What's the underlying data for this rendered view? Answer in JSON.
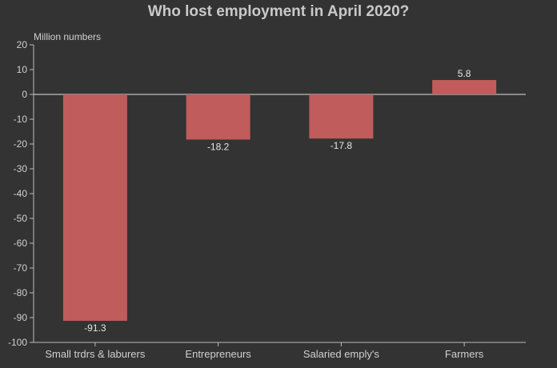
{
  "chart_data": {
    "type": "bar",
    "title": "Who lost employment in April 2020?",
    "ylabel": "Million numbers",
    "xlabel": "",
    "categories": [
      "Small trdrs & laburers",
      "Entrepreneurs",
      "Salaried emply's",
      "Farmers"
    ],
    "values": [
      -91.3,
      -18.2,
      -17.8,
      5.8
    ],
    "value_labels": [
      "-91.3",
      "-18.2",
      "-17.8",
      "5.8"
    ],
    "ylim": [
      -100,
      20
    ],
    "yticks": [
      20,
      10,
      0,
      -10,
      -20,
      -30,
      -40,
      -50,
      -60,
      -70,
      -80,
      -90,
      -100
    ],
    "grid": false,
    "legend": "none",
    "colors": {
      "bar": "#c05c5c",
      "background": "#333333",
      "axis": "#bbbbbb",
      "text": "#d0d0d0"
    }
  }
}
